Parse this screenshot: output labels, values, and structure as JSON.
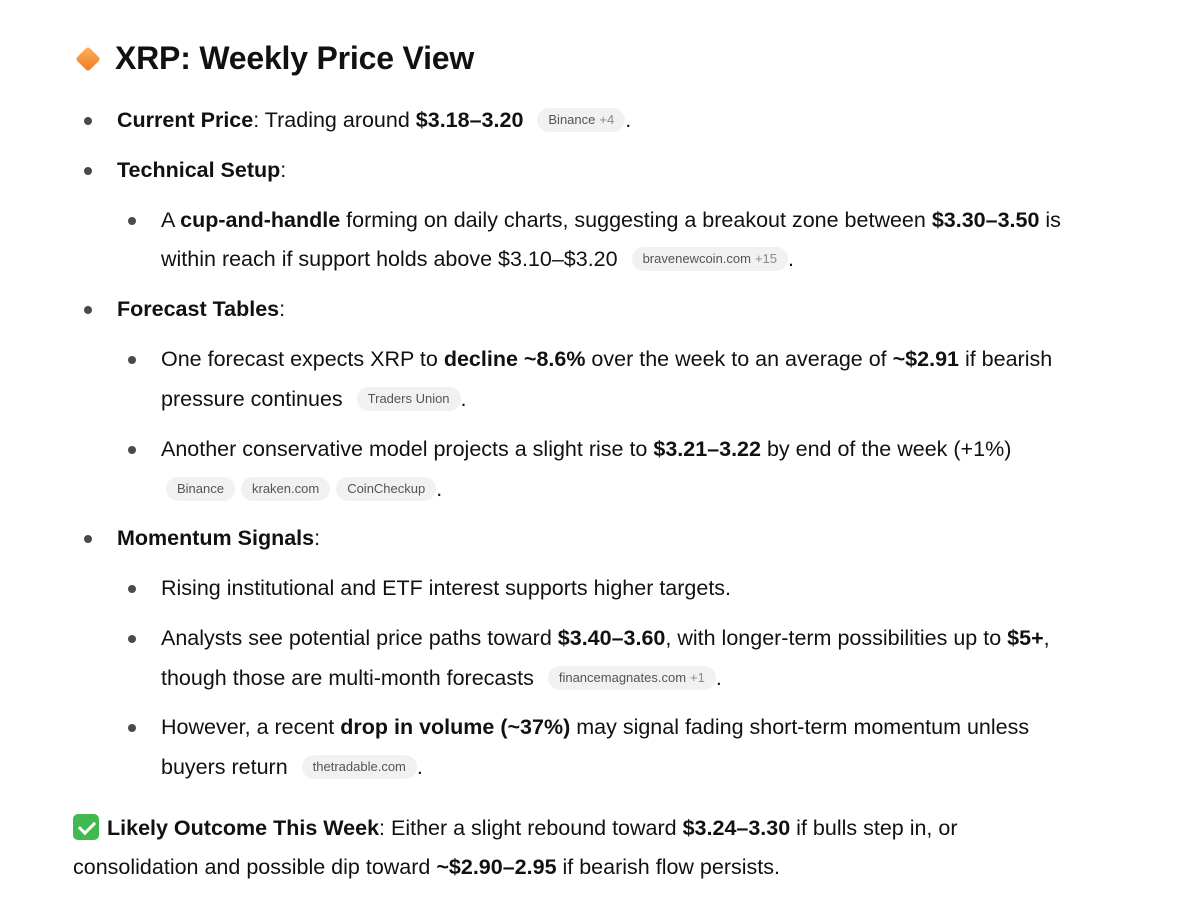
{
  "title": {
    "icon": "orange-diamond-icon",
    "text": "XRP: Weekly Price View"
  },
  "sections": {
    "current_price": {
      "label": "Current Price",
      "colon": ":",
      "text": " Trading around ",
      "value": "$3.18–3.20",
      "chip_main": "Binance",
      "chip_extra": "+4",
      "end": "."
    },
    "technical_setup": {
      "label": "Technical Setup",
      "colon": ":",
      "item1": {
        "pre": "A ",
        "bold1": "cup-and-handle",
        "mid": " forming on daily charts, suggesting a breakout zone between ",
        "bold2": "$3.30–3.50",
        "post": " is",
        "line2": "within reach if support holds above $3.10–$3.20",
        "chip_main": "bravenewcoin.com",
        "chip_extra": "+15",
        "end": "."
      }
    },
    "forecast_tables": {
      "label": "Forecast Tables",
      "colon": ":",
      "item1": {
        "pre": "One forecast expects XRP to ",
        "bold1": "decline ~8.6%",
        "mid": " over the week to an average of ",
        "bold2": "~$2.91",
        "post": " if bearish",
        "line2": "pressure continues",
        "chip": "Traders Union",
        "end": "."
      },
      "item2": {
        "pre": "Another conservative model projects a slight rise to ",
        "bold1": "$3.21–3.22",
        "post": " by end of the week (+1%)",
        "chips": [
          "Binance",
          "kraken.com",
          "CoinCheckup"
        ],
        "end": "."
      }
    },
    "momentum_signals": {
      "label": "Momentum Signals",
      "colon": ":",
      "item1": {
        "text": "Rising institutional and ETF interest supports higher targets."
      },
      "item2": {
        "pre": "Analysts see potential price paths toward ",
        "bold1": "$3.40–3.60",
        "mid": ", with longer-term possibilities up to ",
        "bold2": "$5+",
        "post": ",",
        "line2": "though those are multi-month forecasts",
        "chip_main": "financemagnates.com",
        "chip_extra": "+1",
        "end": "."
      },
      "item3": {
        "pre": "However, a recent ",
        "bold1": "drop in volume (~37%)",
        "post": " may signal fading short-term momentum unless",
        "line2": "buyers return",
        "chip": "thetradable.com",
        "end": "."
      }
    }
  },
  "outcome": {
    "icon": "green-checkmark-icon",
    "label": "Likely Outcome This Week",
    "pre": ": Either a slight rebound toward ",
    "bold1": "$3.24–3.30",
    "mid": " if bulls step in, or",
    "line2_pre": "consolidation and possible dip toward ",
    "bold2": "~$2.90–2.95",
    "line2_post": " if bearish flow persists."
  }
}
